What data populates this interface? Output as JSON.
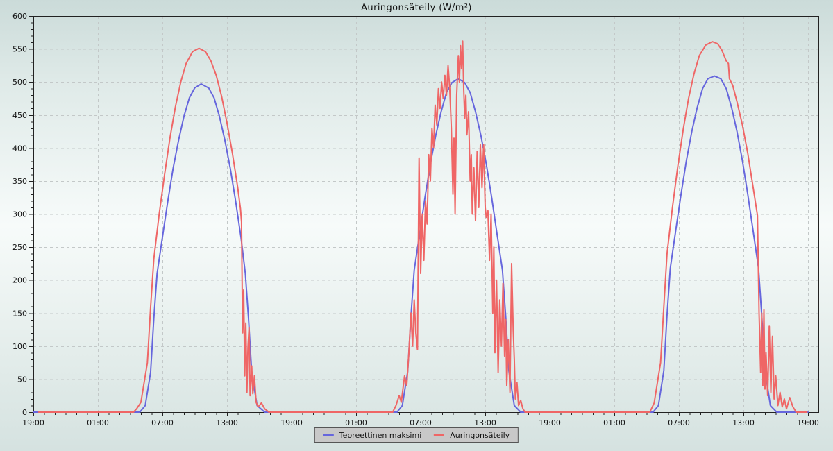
{
  "title": "Auringonsäteily (W/m²)",
  "legend": {
    "items": [
      {
        "label": "Teoreettinen maksimi",
        "color": "#6666dd"
      },
      {
        "label": "Auringonsäteily",
        "color": "#ef6666"
      }
    ]
  },
  "colors": {
    "background_top": "#cbdbd9",
    "background_middle": "#f7fbfa",
    "background_bottom": "#d5e2e0",
    "grid": "#c3c8c8",
    "axis": "#222222",
    "tick_label": "#111111",
    "legend_background": "#c8c8c8",
    "legend_border": "#555555",
    "series_blue": "#6666dd",
    "series_red": "#ef6666"
  },
  "chart_data": {
    "type": "line",
    "title": "Auringonsäteily (W/m²)",
    "xlabel": "",
    "ylabel": "",
    "ylim": [
      0,
      600
    ],
    "y_major_step": 50,
    "y_minor_step": 10,
    "x_hours_range": [
      0,
      72
    ],
    "x_major_step_hours": 6,
    "x_minor_step_hours": 1,
    "x_tick_labels": [
      "19:00",
      "01:00",
      "07:00",
      "13:00",
      "19:00",
      "01:00",
      "07:00",
      "13:00",
      "19:00",
      "01:00",
      "07:00",
      "13:00",
      "19:00"
    ],
    "grid": "dashed",
    "legend_position": "bottom-center",
    "series": [
      {
        "name": "Teoreettinen maksimi",
        "color": "#6666dd",
        "points": [
          [
            0,
            0
          ],
          [
            9.9,
            0
          ],
          [
            10.4,
            10
          ],
          [
            10.9,
            60
          ],
          [
            11.2,
            142
          ],
          [
            11.5,
            210
          ],
          [
            12,
            265
          ],
          [
            12.5,
            320
          ],
          [
            13,
            370
          ],
          [
            13.5,
            412
          ],
          [
            14,
            448
          ],
          [
            14.5,
            476
          ],
          [
            15,
            491
          ],
          [
            15.6,
            497
          ],
          [
            16.3,
            491
          ],
          [
            16.8,
            476
          ],
          [
            17.3,
            448
          ],
          [
            17.8,
            412
          ],
          [
            18.3,
            370
          ],
          [
            18.8,
            320
          ],
          [
            19.3,
            265
          ],
          [
            19.7,
            210
          ],
          [
            20,
            142
          ],
          [
            20.3,
            60
          ],
          [
            20.8,
            10
          ],
          [
            21.5,
            0
          ],
          [
            33.8,
            0
          ],
          [
            34.3,
            10
          ],
          [
            34.8,
            62
          ],
          [
            35.1,
            145
          ],
          [
            35.4,
            215
          ],
          [
            35.9,
            270
          ],
          [
            36.4,
            325
          ],
          [
            36.9,
            376
          ],
          [
            37.4,
            419
          ],
          [
            37.9,
            455
          ],
          [
            38.4,
            484
          ],
          [
            38.9,
            499
          ],
          [
            39.5,
            505
          ],
          [
            40.1,
            499
          ],
          [
            40.6,
            484
          ],
          [
            41.1,
            455
          ],
          [
            41.6,
            419
          ],
          [
            42.1,
            376
          ],
          [
            42.6,
            325
          ],
          [
            43.1,
            270
          ],
          [
            43.6,
            215
          ],
          [
            43.9,
            145
          ],
          [
            44.2,
            62
          ],
          [
            44.7,
            10
          ],
          [
            45.3,
            0
          ],
          [
            57.6,
            0
          ],
          [
            58.1,
            10
          ],
          [
            58.6,
            63
          ],
          [
            58.9,
            147
          ],
          [
            59.2,
            218
          ],
          [
            59.7,
            274
          ],
          [
            60.2,
            330
          ],
          [
            60.7,
            381
          ],
          [
            61.2,
            425
          ],
          [
            61.7,
            461
          ],
          [
            62.2,
            490
          ],
          [
            62.7,
            505
          ],
          [
            63.3,
            509
          ],
          [
            63.9,
            505
          ],
          [
            64.4,
            490
          ],
          [
            64.9,
            461
          ],
          [
            65.4,
            425
          ],
          [
            65.9,
            381
          ],
          [
            66.4,
            330
          ],
          [
            66.9,
            274
          ],
          [
            67.4,
            218
          ],
          [
            67.7,
            147
          ],
          [
            68,
            63
          ],
          [
            68.5,
            10
          ],
          [
            69.1,
            0
          ],
          [
            72,
            0
          ]
        ]
      },
      {
        "name": "Auringonsäteily",
        "color": "#ef6666",
        "points": [
          [
            0.5,
            0
          ],
          [
            9.3,
            0
          ],
          [
            9.6,
            5
          ],
          [
            10,
            15
          ],
          [
            10.6,
            75
          ],
          [
            10.9,
            158
          ],
          [
            11.2,
            232
          ],
          [
            11.7,
            300
          ],
          [
            12.2,
            360
          ],
          [
            12.7,
            415
          ],
          [
            13.2,
            462
          ],
          [
            13.7,
            500
          ],
          [
            14.2,
            528
          ],
          [
            14.8,
            546
          ],
          [
            15.4,
            551
          ],
          [
            16,
            546
          ],
          [
            16.5,
            532
          ],
          [
            17,
            510
          ],
          [
            17.5,
            478
          ],
          [
            18,
            438
          ],
          [
            18.5,
            392
          ],
          [
            19,
            340
          ],
          [
            19.25,
            308
          ],
          [
            19.35,
            288
          ],
          [
            19.45,
            120
          ],
          [
            19.55,
            185
          ],
          [
            19.65,
            55
          ],
          [
            19.75,
            135
          ],
          [
            19.85,
            30
          ],
          [
            19.95,
            98
          ],
          [
            20.05,
            128
          ],
          [
            20.15,
            25
          ],
          [
            20.3,
            70
          ],
          [
            20.4,
            28
          ],
          [
            20.55,
            55
          ],
          [
            20.7,
            15
          ],
          [
            20.9,
            8
          ],
          [
            21.2,
            14
          ],
          [
            21.5,
            5
          ],
          [
            21.9,
            0
          ],
          [
            33.4,
            0
          ],
          [
            33.7,
            10
          ],
          [
            34,
            25
          ],
          [
            34.2,
            15
          ],
          [
            34.5,
            55
          ],
          [
            34.7,
            40
          ],
          [
            34.9,
            90
          ],
          [
            35.1,
            150
          ],
          [
            35.25,
            100
          ],
          [
            35.4,
            170
          ],
          [
            35.55,
            120
          ],
          [
            35.7,
            95
          ],
          [
            35.85,
            385
          ],
          [
            36,
            210
          ],
          [
            36.15,
            300
          ],
          [
            36.3,
            230
          ],
          [
            36.45,
            320
          ],
          [
            36.6,
            285
          ],
          [
            36.75,
            390
          ],
          [
            36.9,
            350
          ],
          [
            37.05,
            430
          ],
          [
            37.2,
            400
          ],
          [
            37.35,
            465
          ],
          [
            37.5,
            435
          ],
          [
            37.65,
            490
          ],
          [
            37.8,
            460
          ],
          [
            37.95,
            500
          ],
          [
            38.1,
            475
          ],
          [
            38.25,
            510
          ],
          [
            38.4,
            480
          ],
          [
            38.55,
            525
          ],
          [
            38.7,
            490
          ],
          [
            38.85,
            430
          ],
          [
            39,
            330
          ],
          [
            39.1,
            415
          ],
          [
            39.2,
            300
          ],
          [
            39.35,
            480
          ],
          [
            39.5,
            540
          ],
          [
            39.6,
            500
          ],
          [
            39.7,
            555
          ],
          [
            39.8,
            520
          ],
          [
            39.9,
            562
          ],
          [
            40,
            490
          ],
          [
            40.1,
            445
          ],
          [
            40.2,
            480
          ],
          [
            40.3,
            420
          ],
          [
            40.45,
            455
          ],
          [
            40.6,
            350
          ],
          [
            40.7,
            390
          ],
          [
            40.8,
            300
          ],
          [
            40.95,
            370
          ],
          [
            41.1,
            290
          ],
          [
            41.25,
            395
          ],
          [
            41.4,
            310
          ],
          [
            41.55,
            405
          ],
          [
            41.7,
            340
          ],
          [
            41.85,
            405
          ],
          [
            42,
            310
          ],
          [
            42.1,
            295
          ],
          [
            42.25,
            305
          ],
          [
            42.4,
            230
          ],
          [
            42.55,
            300
          ],
          [
            42.7,
            150
          ],
          [
            42.8,
            250
          ],
          [
            42.9,
            90
          ],
          [
            43.05,
            200
          ],
          [
            43.2,
            60
          ],
          [
            43.35,
            170
          ],
          [
            43.5,
            100
          ],
          [
            43.65,
            195
          ],
          [
            43.8,
            85
          ],
          [
            43.9,
            140
          ],
          [
            44,
            40
          ],
          [
            44.15,
            110
          ],
          [
            44.3,
            30
          ],
          [
            44.45,
            225
          ],
          [
            44.6,
            125
          ],
          [
            44.7,
            80
          ],
          [
            44.8,
            20
          ],
          [
            44.95,
            45
          ],
          [
            45.1,
            10
          ],
          [
            45.3,
            18
          ],
          [
            45.5,
            5
          ],
          [
            45.7,
            0
          ],
          [
            57.3,
            0
          ],
          [
            57.7,
            14
          ],
          [
            58.3,
            75
          ],
          [
            58.6,
            160
          ],
          [
            58.9,
            240
          ],
          [
            59.4,
            310
          ],
          [
            59.9,
            372
          ],
          [
            60.4,
            428
          ],
          [
            60.9,
            475
          ],
          [
            61.4,
            512
          ],
          [
            61.9,
            540
          ],
          [
            62.5,
            556
          ],
          [
            63.1,
            561
          ],
          [
            63.6,
            558
          ],
          [
            64,
            548
          ],
          [
            64.4,
            532
          ],
          [
            64.6,
            528
          ],
          [
            64.7,
            505
          ],
          [
            65,
            495
          ],
          [
            65.4,
            470
          ],
          [
            65.9,
            435
          ],
          [
            66.4,
            392
          ],
          [
            66.9,
            340
          ],
          [
            67.3,
            298
          ],
          [
            67.45,
            150
          ],
          [
            67.6,
            60
          ],
          [
            67.7,
            150
          ],
          [
            67.8,
            40
          ],
          [
            67.9,
            155
          ],
          [
            68,
            35
          ],
          [
            68.1,
            90
          ],
          [
            68.25,
            25
          ],
          [
            68.4,
            130
          ],
          [
            68.55,
            30
          ],
          [
            68.7,
            115
          ],
          [
            68.85,
            20
          ],
          [
            69,
            55
          ],
          [
            69.2,
            10
          ],
          [
            69.4,
            30
          ],
          [
            69.6,
            8
          ],
          [
            69.8,
            20
          ],
          [
            70,
            5
          ],
          [
            70.3,
            22
          ],
          [
            70.6,
            8
          ],
          [
            70.9,
            0
          ],
          [
            71.9,
            0
          ]
        ]
      }
    ]
  }
}
